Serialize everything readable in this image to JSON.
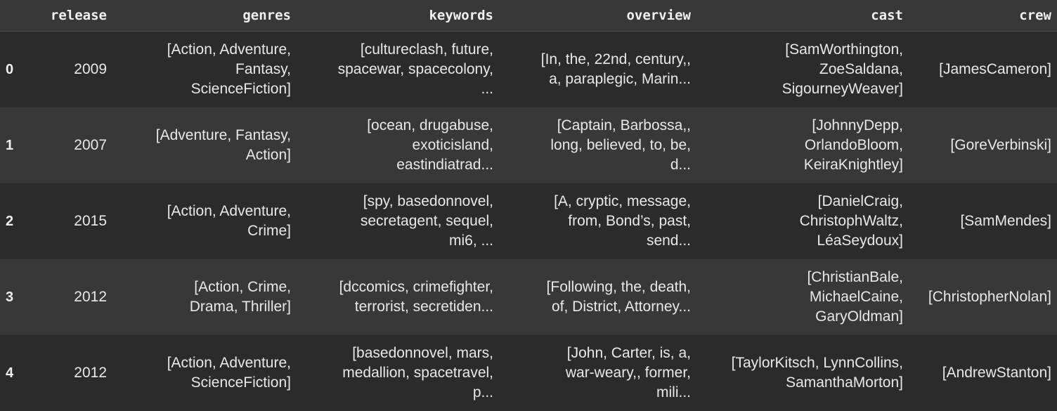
{
  "columns": [
    "release",
    "genres",
    "keywords",
    "overview",
    "cast",
    "crew"
  ],
  "rows": [
    {
      "index": "0",
      "release": "2009",
      "genres": "[Action, Adventure,\nFantasy,\nScienceFiction]",
      "keywords": "[cultureclash, future,\nspacewar, spacecolony,\n...",
      "overview": "[In, the, 22nd, century,,\na, paraplegic, Marin...",
      "cast": "[SamWorthington,\nZoeSaldana,\nSigourneyWeaver]",
      "crew": "[JamesCameron]"
    },
    {
      "index": "1",
      "release": "2007",
      "genres": "[Adventure, Fantasy,\nAction]",
      "keywords": "[ocean, drugabuse,\nexoticisland,\neastindiatrad...",
      "overview": "[Captain, Barbossa,,\nlong, believed, to, be,\nd...",
      "cast": "[JohnnyDepp,\nOrlandoBloom,\nKeiraKnightley]",
      "crew": "[GoreVerbinski]"
    },
    {
      "index": "2",
      "release": "2015",
      "genres": "[Action, Adventure,\nCrime]",
      "keywords": "[spy, basedonnovel,\nsecretagent, sequel,\nmi6, ...",
      "overview": "[A, cryptic, message,\nfrom, Bond’s, past,\nsend...",
      "cast": "[DanielCraig,\nChristophWaltz,\nLéaSeydoux]",
      "crew": "[SamMendes]"
    },
    {
      "index": "3",
      "release": "2012",
      "genres": "[Action, Crime,\nDrama, Thriller]",
      "keywords": "[dccomics, crimefighter,\nterrorist, secretiden...",
      "overview": "[Following, the, death,\nof, District, Attorney...",
      "cast": "[ChristianBale,\nMichaelCaine,\nGaryOldman]",
      "crew": "[ChristopherNolan]"
    },
    {
      "index": "4",
      "release": "2012",
      "genres": "[Action, Adventure,\nScienceFiction]",
      "keywords": "[basedonnovel, mars,\nmedallion, spacetravel,\np...",
      "overview": "[John, Carter, is, a,\nwar-weary,, former,\nmili...",
      "cast": "[TaylorKitsch, LynnCollins,\nSamanthaMorton]",
      "crew": "[AndrewStanton]"
    }
  ]
}
